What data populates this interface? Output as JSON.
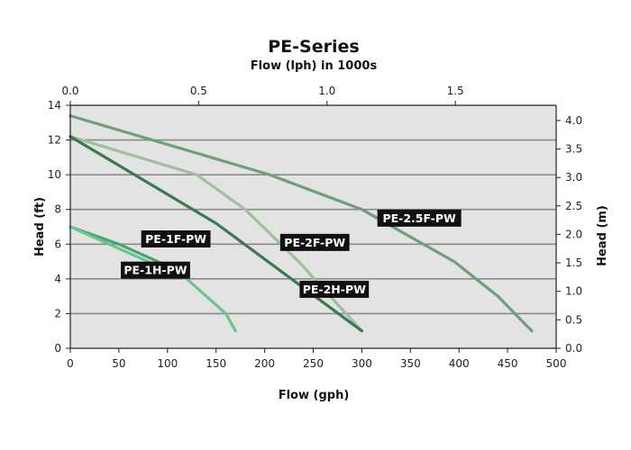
{
  "chart_data": {
    "type": "line",
    "title": "PE-Series",
    "subtitle": "Flow (lph)  in 1000s",
    "xlabel": "Flow (gph)",
    "ylabel": "Head (ft)",
    "y2label": "Head (m)",
    "xlim": [
      0,
      500
    ],
    "ylim": [
      0,
      14
    ],
    "x_ticks": [
      "0",
      "50",
      "100",
      "150",
      "200",
      "250",
      "300",
      "350",
      "400",
      "450",
      "500"
    ],
    "y_ticks": [
      "0",
      "2",
      "4",
      "6",
      "8",
      "10",
      "12",
      "14"
    ],
    "x2_ticks": [
      "0.0",
      "0.5",
      "1.0",
      "1.5"
    ],
    "x2_values": [
      0,
      0.5,
      1.0,
      1.5
    ],
    "x2_per_x": 0.0037854,
    "y2_ticks": [
      "0.0",
      "0.5",
      "1.0",
      "1.5",
      "2.0",
      "2.5",
      "3.0",
      "3.5",
      "4.0"
    ],
    "y2_values": [
      0,
      0.5,
      1.0,
      1.5,
      2.0,
      2.5,
      3.0,
      3.5,
      4.0
    ],
    "y_per_y2": 3.2808,
    "grid": "horizontal",
    "background": "#e3e3e3",
    "series": [
      {
        "name": "PE-1F-PW",
        "color": "#4aa36e",
        "x": [
          0,
          50,
          90,
          120
        ],
        "y": [
          7,
          6,
          5,
          4
        ]
      },
      {
        "name": "PE-1H-PW",
        "color": "#6cc48f",
        "x": [
          0,
          40,
          80,
          120,
          160,
          170
        ],
        "y": [
          7,
          6,
          5,
          4,
          2,
          1
        ]
      },
      {
        "name": "PE-2F-PW",
        "color": "#9fbf9f",
        "x": [
          0,
          130,
          180,
          235,
          300
        ],
        "y": [
          12.2,
          10,
          8,
          5,
          1
        ]
      },
      {
        "name": "PE-2H-PW",
        "color": "#3a7a50",
        "x": [
          0,
          150,
          300
        ],
        "y": [
          12.2,
          7.2,
          1
        ]
      },
      {
        "name": "PE-2.5F-PW",
        "color": "#6f9e7b",
        "x": [
          0,
          205,
          300,
          395,
          440,
          475
        ],
        "y": [
          13.4,
          10,
          8,
          5,
          3,
          1
        ]
      }
    ],
    "labels": [
      {
        "text": "PE-1F-PW",
        "x": 73,
        "y": 6.3
      },
      {
        "text": "PE-1H-PW",
        "x": 52,
        "y": 4.5
      },
      {
        "text": "PE-2F-PW",
        "x": 216,
        "y": 6.1
      },
      {
        "text": "PE-2H-PW",
        "x": 236,
        "y": 3.4
      },
      {
        "text": "PE-2.5F-PW",
        "x": 316,
        "y": 7.5
      }
    ]
  }
}
